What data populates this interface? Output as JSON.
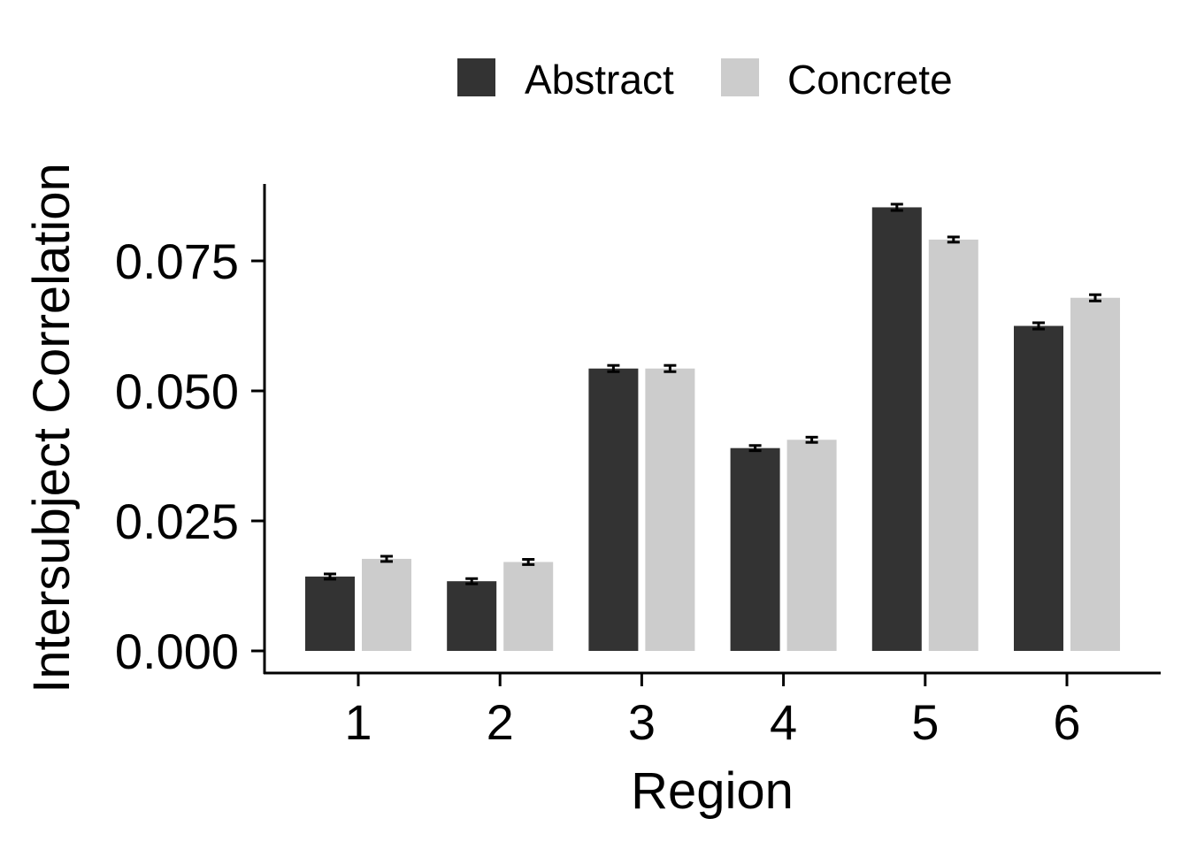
{
  "chart_data": {
    "type": "bar",
    "xlabel": "Region",
    "ylabel": "Intersubject Correlation",
    "categories": [
      "1",
      "2",
      "3",
      "4",
      "5",
      "6"
    ],
    "series": [
      {
        "name": "Abstract",
        "color": "#333333",
        "values": [
          0.0143,
          0.0134,
          0.0543,
          0.039,
          0.0853,
          0.0625
        ],
        "error": [
          0.0005,
          0.0005,
          0.0006,
          0.0005,
          0.0006,
          0.0006
        ]
      },
      {
        "name": "Concrete",
        "color": "#cccccc",
        "values": [
          0.0177,
          0.0171,
          0.0543,
          0.0406,
          0.0791,
          0.0679
        ],
        "error": [
          0.0005,
          0.0005,
          0.0006,
          0.0005,
          0.0005,
          0.0006
        ]
      }
    ],
    "yticks": [
      "0.000",
      "0.025",
      "0.050",
      "0.075"
    ],
    "ylim": [
      0,
      0.091
    ],
    "grid": false,
    "legend": "top"
  }
}
